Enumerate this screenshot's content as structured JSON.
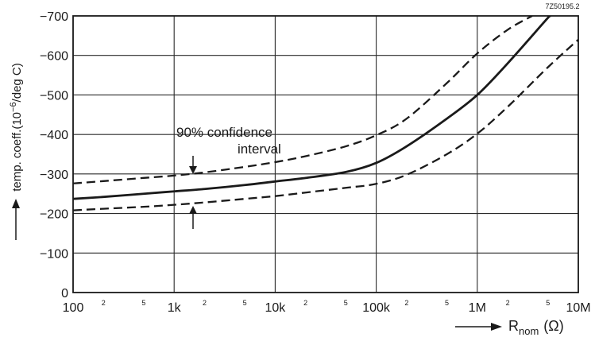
{
  "chart_data": {
    "type": "line",
    "figure_code": "7Z50195.2",
    "xscale": "log",
    "xlim": [
      100,
      10000000
    ],
    "ylim": [
      0,
      -700
    ],
    "grid": true,
    "xlabel": {
      "prefix": "R",
      "subscript": "nom",
      "unit": "(Ω)"
    },
    "ylabel": {
      "text": "temp. coeff.(10",
      "exponent": "−6",
      "unit": "/deg C)"
    },
    "x_ticks": [
      {
        "value": 100,
        "label": "100"
      },
      {
        "value": 1000,
        "label": "1k"
      },
      {
        "value": 10000,
        "label": "10k"
      },
      {
        "value": 100000,
        "label": "100k"
      },
      {
        "value": 1000000,
        "label": "1M"
      },
      {
        "value": 10000000,
        "label": "10M"
      }
    ],
    "x_minor_ticks": [
      {
        "value": 200,
        "label": "2"
      },
      {
        "value": 500,
        "label": "5"
      },
      {
        "value": 2000,
        "label": "2"
      },
      {
        "value": 5000,
        "label": "5"
      },
      {
        "value": 20000,
        "label": "2"
      },
      {
        "value": 50000,
        "label": "5"
      },
      {
        "value": 200000,
        "label": "2"
      },
      {
        "value": 500000,
        "label": "5"
      },
      {
        "value": 2000000,
        "label": "2"
      },
      {
        "value": 5000000,
        "label": "5"
      }
    ],
    "y_ticks": [
      {
        "value": 0,
        "label": "0"
      },
      {
        "value": -100,
        "label": "−100"
      },
      {
        "value": -200,
        "label": "−200"
      },
      {
        "value": -300,
        "label": "−300"
      },
      {
        "value": -400,
        "label": "−400"
      },
      {
        "value": -500,
        "label": "−500"
      },
      {
        "value": -600,
        "label": "−600"
      },
      {
        "value": -700,
        "label": "−700"
      }
    ],
    "annotation": {
      "line1": "90% confidence",
      "line2": "interval"
    },
    "series": [
      {
        "role": "upper-confidence",
        "style": "dashed",
        "points": [
          [
            100,
            -276
          ],
          [
            200,
            -282
          ],
          [
            500,
            -290
          ],
          [
            1000,
            -296
          ],
          [
            2000,
            -304
          ],
          [
            5000,
            -318
          ],
          [
            10000,
            -330
          ],
          [
            20000,
            -345
          ],
          [
            50000,
            -370
          ],
          [
            100000,
            -398
          ],
          [
            200000,
            -440
          ],
          [
            500000,
            -530
          ],
          [
            1000000,
            -605
          ],
          [
            2000000,
            -665
          ],
          [
            3500000,
            -700
          ]
        ]
      },
      {
        "role": "nominal",
        "style": "solid",
        "points": [
          [
            100,
            -237
          ],
          [
            200,
            -242
          ],
          [
            500,
            -250
          ],
          [
            1000,
            -256
          ],
          [
            2000,
            -262
          ],
          [
            5000,
            -272
          ],
          [
            10000,
            -281
          ],
          [
            20000,
            -290
          ],
          [
            50000,
            -305
          ],
          [
            100000,
            -328
          ],
          [
            200000,
            -370
          ],
          [
            500000,
            -440
          ],
          [
            1000000,
            -500
          ],
          [
            2000000,
            -580
          ],
          [
            5000000,
            -695
          ],
          [
            5300000,
            -700
          ]
        ]
      },
      {
        "role": "lower-confidence",
        "style": "dashed",
        "points": [
          [
            100,
            -208
          ],
          [
            200,
            -212
          ],
          [
            500,
            -217
          ],
          [
            1000,
            -222
          ],
          [
            2000,
            -228
          ],
          [
            5000,
            -237
          ],
          [
            10000,
            -244
          ],
          [
            20000,
            -253
          ],
          [
            50000,
            -265
          ],
          [
            100000,
            -275
          ],
          [
            200000,
            -298
          ],
          [
            500000,
            -350
          ],
          [
            1000000,
            -402
          ],
          [
            2000000,
            -470
          ],
          [
            5000000,
            -570
          ],
          [
            10000000,
            -640
          ]
        ]
      }
    ]
  }
}
